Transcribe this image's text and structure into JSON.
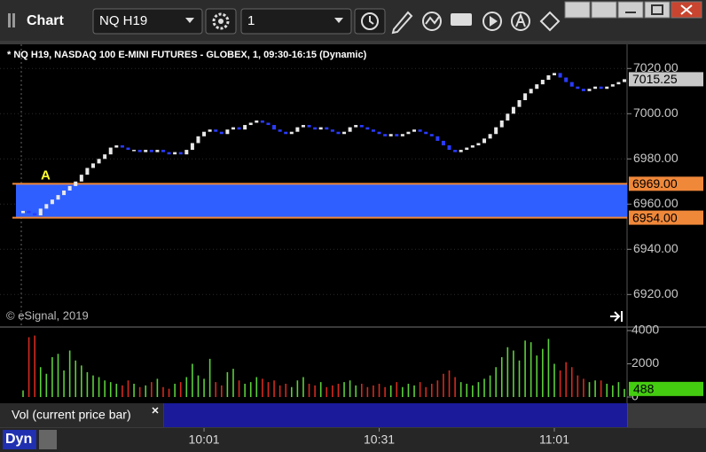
{
  "window": {
    "title": "Chart",
    "symbol": "NQ H19",
    "interval": "1"
  },
  "watermark": "© eSignal, 2019",
  "footer_mode": "Dyn",
  "chart_data": [
    {
      "type": "candlestick",
      "title": "* NQ H19, NASDAQ 100 E-MINI FUTURES - GLOBEX, 1, 09:30-16:15 (Dynamic)",
      "annotation": "A",
      "up_color": "#e8e8e8",
      "down_color": "#2a3cff",
      "band_color": "#2f5fff",
      "level_color": "#f0883a",
      "grid": true,
      "ylim": [
        6906,
        7030.7
      ],
      "yticks": [
        {
          "value": 6920,
          "label": "6920.00"
        },
        {
          "value": 6940,
          "label": "6940.00"
        },
        {
          "value": 6960,
          "label": "6960.00"
        },
        {
          "value": 6980,
          "label": "6980.00"
        },
        {
          "value": 7000,
          "label": "7000.00"
        },
        {
          "value": 7020,
          "label": "7020.00"
        }
      ],
      "levels": [
        {
          "value": 6969,
          "label": "6969.00"
        },
        {
          "value": 6954,
          "label": "6954.00"
        }
      ],
      "categories": [
        null,
        null,
        null,
        null,
        null,
        null,
        null,
        null,
        null,
        null,
        null,
        null,
        null,
        null,
        null,
        null,
        null,
        null,
        null,
        null,
        null,
        null,
        null,
        null,
        null,
        null,
        null,
        null,
        null,
        null,
        null,
        "10:01",
        null,
        null,
        null,
        null,
        null,
        null,
        null,
        null,
        null,
        null,
        null,
        null,
        null,
        null,
        null,
        null,
        null,
        null,
        null,
        null,
        null,
        null,
        null,
        null,
        null,
        null,
        null,
        null,
        null,
        "10:31",
        null,
        null,
        null,
        null,
        null,
        null,
        null,
        null,
        null,
        null,
        null,
        null,
        null,
        null,
        null,
        null,
        null,
        null,
        null,
        null,
        null,
        null,
        null,
        null,
        null,
        null,
        null,
        null,
        null,
        "11:01",
        null,
        null,
        null,
        null,
        null,
        null,
        null,
        null,
        null,
        null,
        null,
        null
      ],
      "open": [
        6956,
        6957,
        6956,
        6955,
        6958,
        6960,
        6962,
        6964,
        6966,
        6968,
        6970,
        6973,
        6976,
        6978,
        6980,
        6982,
        6985,
        6986,
        6985,
        6984,
        6984,
        6983,
        6984,
        6983,
        6984,
        6983,
        6982,
        6983,
        6982,
        6984,
        6987,
        6990,
        6992,
        6993,
        6992,
        6991,
        6993,
        6994,
        6993,
        6995,
        6996,
        6997,
        6996,
        6995,
        6993,
        6992,
        6991,
        6992,
        6994,
        6995,
        6994,
        6993,
        6994,
        6993,
        6992,
        6991,
        6992,
        6994,
        6995,
        6994,
        6993,
        6992,
        6991,
        6990,
        6991,
        6990,
        6991,
        6992,
        6993,
        6992,
        6991,
        6990,
        6988,
        6986,
        6984,
        6983,
        6984,
        6985,
        6986,
        6987,
        6989,
        6991,
        6994,
        6997,
        7000,
        7003,
        7006,
        7009,
        7011,
        7013,
        7015,
        7017,
        7018,
        7016,
        7014,
        7012,
        7011,
        7010,
        7011,
        7012,
        7011,
        7012,
        7013,
        7014
      ],
      "close": [
        6957,
        6956,
        6955,
        6958,
        6960,
        6962,
        6964,
        6966,
        6968,
        6970,
        6973,
        6976,
        6978,
        6980,
        6982,
        6985,
        6986,
        6985,
        6984,
        6984,
        6983,
        6984,
        6983,
        6984,
        6983,
        6982,
        6983,
        6982,
        6984,
        6987,
        6990,
        6992,
        6993,
        6992,
        6991,
        6993,
        6994,
        6993,
        6995,
        6996,
        6997,
        6996,
        6995,
        6993,
        6992,
        6991,
        6992,
        6994,
        6995,
        6994,
        6993,
        6994,
        6993,
        6992,
        6991,
        6992,
        6994,
        6995,
        6994,
        6993,
        6992,
        6991,
        6990,
        6991,
        6990,
        6991,
        6992,
        6993,
        6992,
        6991,
        6990,
        6988,
        6986,
        6984,
        6983,
        6984,
        6985,
        6986,
        6987,
        6989,
        6991,
        6994,
        6997,
        7000,
        7003,
        7006,
        7009,
        7011,
        7013,
        7015,
        7017,
        7018,
        7016,
        7014,
        7012,
        7011,
        7010,
        7011,
        7012,
        7011,
        7012,
        7013,
        7014,
        7015.25
      ]
    },
    {
      "type": "bar",
      "title": "Vol (current price bar)",
      "up_color": "#5ccf3c",
      "down_color": "#d42a1e",
      "last_color": "#44cc11",
      "ylim": [
        0,
        4000
      ],
      "yticks": [
        0,
        2000,
        4000
      ],
      "values": [
        400,
        3600,
        3700,
        1800,
        1400,
        2400,
        2600,
        1600,
        2800,
        2200,
        1900,
        1500,
        1300,
        1200,
        1000,
        900,
        800,
        700,
        1000,
        800,
        600,
        700,
        900,
        1100,
        600,
        500,
        800,
        900,
        1200,
        2000,
        1300,
        1100,
        2300,
        900,
        700,
        1500,
        1700,
        1000,
        800,
        900,
        1200,
        1100,
        900,
        1000,
        700,
        800,
        600,
        1000,
        1200,
        800,
        700,
        900,
        600,
        700,
        800,
        900,
        1000,
        700,
        800,
        600,
        700,
        800,
        600,
        700,
        900,
        600,
        800,
        700,
        900,
        600,
        800,
        1000,
        1400,
        1600,
        1200,
        900,
        800,
        700,
        900,
        1100,
        1300,
        1800,
        2400,
        3000,
        2800,
        2200,
        3400,
        3300,
        2500,
        2900,
        3500,
        2000,
        1600,
        2100,
        1800,
        1300,
        1100,
        900,
        1000,
        1000,
        800,
        700,
        900,
        488
      ]
    }
  ]
}
